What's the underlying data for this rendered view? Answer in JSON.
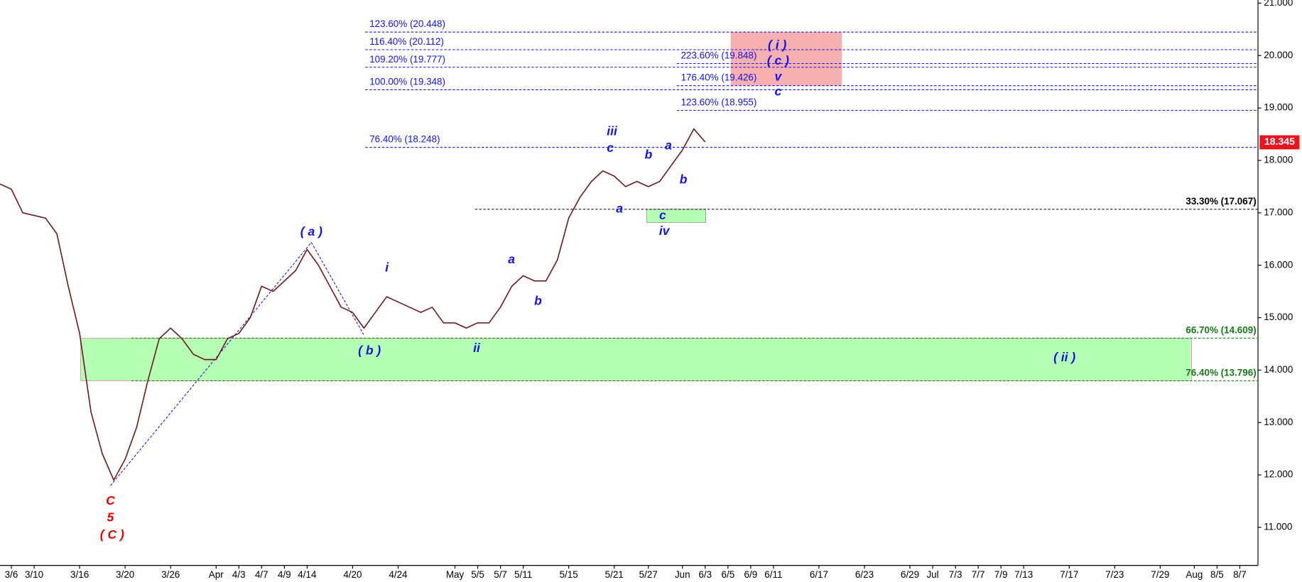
{
  "chart_data": {
    "type": "line",
    "color": "#6b1f1f",
    "categories": [
      null,
      "3/6",
      null,
      "3/10",
      null,
      null,
      null,
      "3/16",
      null,
      null,
      null,
      "3/20",
      null,
      null,
      null,
      "3/26",
      null,
      null,
      null,
      "Apr",
      null,
      "4/3",
      null,
      "4/7",
      null,
      "4/9",
      null,
      "4/14",
      null,
      null,
      null,
      "4/20",
      null,
      null,
      null,
      "4/24",
      null,
      null,
      null,
      null,
      "May",
      null,
      "5/5",
      null,
      "5/7",
      null,
      "5/11",
      null,
      null,
      null,
      "5/15",
      null,
      null,
      null,
      "5/21",
      null,
      null,
      "5/27",
      null,
      null,
      "Jun",
      null,
      "6/3",
      null,
      "6/5",
      null,
      "6/9",
      null,
      "6/11",
      null,
      null,
      null,
      "6/17",
      null,
      null,
      null,
      "6/23",
      null,
      null,
      null,
      "6/29",
      null,
      "Jul",
      null,
      "7/3",
      null,
      "7/7",
      null,
      "7/9",
      null,
      "7/13",
      null,
      null,
      null,
      "7/17",
      null,
      null,
      null,
      "7/23",
      null,
      null,
      null,
      "7/29",
      null,
      null,
      "Aug",
      null,
      "8/5",
      null,
      "8/7",
      null
    ],
    "values": [
      17.55,
      17.45,
      17.0,
      16.95,
      16.9,
      16.6,
      15.6,
      14.7,
      13.2,
      12.4,
      11.9,
      12.3,
      12.9,
      13.8,
      14.6,
      14.8,
      14.6,
      14.3,
      14.2,
      14.2,
      14.6,
      14.7,
      15.0,
      15.6,
      15.5,
      15.7,
      15.9,
      16.3,
      16.0,
      15.6,
      15.2,
      15.1,
      14.8,
      15.1,
      15.4,
      15.3,
      15.2,
      15.1,
      15.2,
      14.9,
      14.9,
      14.8,
      14.9,
      14.9,
      15.2,
      15.6,
      15.8,
      15.7,
      15.7,
      16.1,
      16.9,
      17.3,
      17.6,
      17.8,
      17.7,
      17.5,
      17.6,
      17.5,
      17.6,
      17.9,
      18.2,
      18.6,
      18.35,
      null,
      null,
      null,
      null,
      null,
      null,
      null,
      null,
      null,
      null,
      null,
      null,
      null,
      null,
      null,
      null,
      null,
      null,
      null,
      null,
      null,
      null,
      null,
      null,
      null,
      null,
      null,
      null,
      null,
      null,
      null,
      null,
      null,
      null,
      null,
      null,
      null,
      null,
      null,
      null,
      null,
      null,
      null,
      null,
      null,
      null,
      null,
      null
    ],
    "ylim": [
      10.29,
      21.06
    ],
    "yticks": [
      {
        "value": 11,
        "label": "11.000"
      },
      {
        "value": 12,
        "label": "12.000"
      },
      {
        "value": 13,
        "label": "13.000"
      },
      {
        "value": 14,
        "label": "14.000"
      },
      {
        "value": 15,
        "label": "15.000"
      },
      {
        "value": 16,
        "label": "16.000"
      },
      {
        "value": 17,
        "label": "17.000"
      },
      {
        "value": 18,
        "label": "18.000"
      },
      {
        "value": 19,
        "label": "19.000"
      },
      {
        "value": 20,
        "label": "20.000"
      },
      {
        "value": 21,
        "label": "21.000"
      }
    ],
    "last_price": 18.345,
    "levels": [
      {
        "label": "123.60% (20.448)",
        "value": 20.448,
        "color": "#1414e6"
      },
      {
        "label": "116.40% (20.112)",
        "value": 20.112,
        "color": "#1414e6"
      },
      {
        "label": "109.20% (19.777)",
        "value": 19.777,
        "color": "#1414e6"
      },
      {
        "label": "100.00% (19.348)",
        "value": 19.348,
        "color": "#1414e6"
      },
      {
        "label": "76.40% (18.248)",
        "value": 18.248,
        "color": "#1414e6"
      },
      {
        "label": "223.60% (19.848)",
        "value": 19.848,
        "color": "#1414e6"
      },
      {
        "label": "176.40% (19.426)",
        "value": 19.426,
        "color": "#1414e6"
      },
      {
        "label": "123.60% (18.955)",
        "value": 18.955,
        "color": "#1414e6"
      },
      {
        "label": "33.30% (17.067)",
        "value": 17.067,
        "color": "#000000"
      },
      {
        "label": "66.70% (14.609)",
        "value": 14.609,
        "color": "#1a7a1a"
      },
      {
        "label": "76.40% (13.796)",
        "value": 13.796,
        "color": "#1a7a1a"
      }
    ],
    "wave_labels": [
      {
        "text": "C",
        "color": "#e60000"
      },
      {
        "text": "5",
        "color": "#e60000"
      },
      {
        "text": "( C )",
        "color": "#e60000"
      },
      {
        "text": "( a )",
        "color": "#1414e6"
      },
      {
        "text": "( b )",
        "color": "#1414e6"
      },
      {
        "text": "i",
        "color": "#1414e6"
      },
      {
        "text": "ii",
        "color": "#1414e6"
      },
      {
        "text": "a",
        "color": "#1414e6"
      },
      {
        "text": "b",
        "color": "#1414e6"
      },
      {
        "text": "iii",
        "color": "#1414e6"
      },
      {
        "text": "c",
        "color": "#1414e6"
      },
      {
        "text": "a",
        "color": "#1414e6"
      },
      {
        "text": "b",
        "color": "#1414e6"
      },
      {
        "text": "a",
        "color": "#1414e6"
      },
      {
        "text": "b",
        "color": "#1414e6"
      },
      {
        "text": "c",
        "color": "#1414e6"
      },
      {
        "text": "iv",
        "color": "#1414e6"
      },
      {
        "text": "( i )",
        "color": "#1414e6"
      },
      {
        "text": "( c )",
        "color": "#1414e6"
      },
      {
        "text": "v",
        "color": "#1414e6"
      },
      {
        "text": "c",
        "color": "#1414e6"
      },
      {
        "text": "( ii )",
        "color": "#1414e6"
      }
    ]
  }
}
